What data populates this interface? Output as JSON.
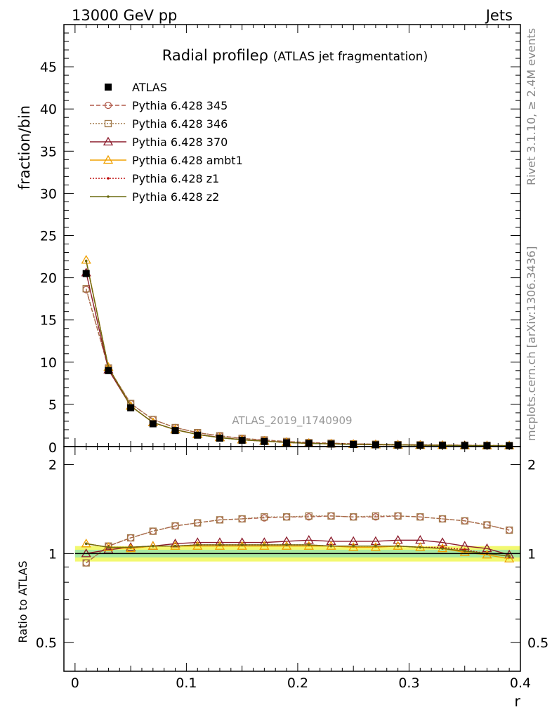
{
  "header": {
    "left": "13000 GeV pp",
    "right": "Jets"
  },
  "side": {
    "upper": "Rivet 3.1.10, ≥ 2.4M events",
    "lower": "mcplots.cern.ch [arXiv:1306.3436]"
  },
  "chart_data": {
    "type": "line",
    "title": "Radial profile ρ (ATLAS jet fragmentation)",
    "title_main": "Radial profile",
    "title_rho": "ρ",
    "title_paren": "(ATLAS jet fragmentation)",
    "watermark": "ATLAS_2019_I1740909",
    "xlabel": "r",
    "ylabel_main": "fraction/bin",
    "ylabel_ratio": "Ratio to ATLAS",
    "xlim": [
      -0.01,
      0.4
    ],
    "ylim_main": [
      0,
      50
    ],
    "ylim_ratio": [
      0.4,
      2.3
    ],
    "xticks": [
      "0",
      "0.1",
      "0.2",
      "0.3",
      "0.4"
    ],
    "yticks_main": [
      "5",
      "10",
      "15",
      "20",
      "25",
      "30",
      "35",
      "40",
      "45"
    ],
    "yticks_ratio": [
      "0.5",
      "1",
      "2"
    ],
    "x": [
      0.01,
      0.03,
      0.05,
      0.07,
      0.09,
      0.11,
      0.13,
      0.15,
      0.17,
      0.19,
      0.21,
      0.23,
      0.25,
      0.27,
      0.29,
      0.31,
      0.33,
      0.35,
      0.37,
      0.39
    ],
    "series": [
      {
        "name": "ATLAS",
        "color": "#000000",
        "style": "data",
        "values": [
          20.5,
          9.0,
          4.6,
          2.7,
          1.9,
          1.35,
          1.0,
          0.75,
          0.6,
          0.45,
          0.36,
          0.3,
          0.25,
          0.21,
          0.18,
          0.16,
          0.14,
          0.12,
          0.11,
          0.1
        ],
        "ratio": [
          1,
          1,
          1,
          1,
          1,
          1,
          1,
          1,
          1,
          1,
          1,
          1,
          1,
          1,
          1,
          1,
          1,
          1,
          1,
          1
        ]
      },
      {
        "name": "Pythia 6.428 345",
        "color": "#b05a4a",
        "dash": "6,3",
        "marker": "circle",
        "values": [
          18.6,
          9.3,
          5.1,
          3.2,
          2.25,
          1.65,
          1.27,
          0.96,
          0.78,
          0.6,
          0.48,
          0.4,
          0.33,
          0.28,
          0.24,
          0.21,
          0.18,
          0.16,
          0.14,
          0.12
        ],
        "ratio": [
          0.93,
          1.06,
          1.13,
          1.19,
          1.24,
          1.27,
          1.3,
          1.31,
          1.32,
          1.33,
          1.33,
          1.34,
          1.33,
          1.33,
          1.34,
          1.33,
          1.31,
          1.29,
          1.25,
          1.2
        ]
      },
      {
        "name": "Pythia 6.428 346",
        "color": "#a07848",
        "dash": "2,2",
        "marker": "square",
        "values": [
          18.7,
          9.3,
          5.1,
          3.2,
          2.25,
          1.65,
          1.28,
          0.97,
          0.79,
          0.6,
          0.48,
          0.4,
          0.33,
          0.28,
          0.24,
          0.21,
          0.18,
          0.16,
          0.14,
          0.12
        ],
        "ratio": [
          0.93,
          1.06,
          1.13,
          1.19,
          1.24,
          1.27,
          1.3,
          1.31,
          1.33,
          1.33,
          1.34,
          1.34,
          1.33,
          1.34,
          1.34,
          1.33,
          1.31,
          1.29,
          1.25,
          1.2
        ]
      },
      {
        "name": "Pythia 6.428 370",
        "color": "#8c1c2c",
        "dash": "",
        "marker": "triangle",
        "values": [
          20.6,
          9.1,
          4.8,
          2.85,
          2.0,
          1.45,
          1.09,
          0.82,
          0.66,
          0.49,
          0.39,
          0.33,
          0.27,
          0.23,
          0.2,
          0.17,
          0.15,
          0.13,
          0.11,
          0.1
        ],
        "ratio": [
          1.0,
          1.03,
          1.05,
          1.06,
          1.08,
          1.09,
          1.09,
          1.09,
          1.09,
          1.1,
          1.11,
          1.1,
          1.1,
          1.1,
          1.11,
          1.11,
          1.09,
          1.06,
          1.04,
          0.99
        ]
      },
      {
        "name": "Pythia 6.428 ambt1",
        "color": "#f0a000",
        "dash": "",
        "marker": "triangle",
        "values": [
          22.1,
          9.4,
          4.8,
          2.85,
          2.0,
          1.43,
          1.06,
          0.8,
          0.64,
          0.48,
          0.38,
          0.32,
          0.26,
          0.22,
          0.19,
          0.16,
          0.14,
          0.12,
          0.11,
          0.1
        ],
        "ratio": [
          1.08,
          1.05,
          1.04,
          1.06,
          1.06,
          1.06,
          1.06,
          1.06,
          1.06,
          1.06,
          1.06,
          1.06,
          1.05,
          1.05,
          1.06,
          1.05,
          1.04,
          1.01,
          0.99,
          0.96
        ]
      },
      {
        "name": "Pythia 6.428 z1",
        "color": "#c01010",
        "dash": "2,2",
        "marker": "dot",
        "values": [
          22.0,
          9.4,
          4.8,
          2.85,
          2.0,
          1.43,
          1.06,
          0.8,
          0.64,
          0.48,
          0.38,
          0.32,
          0.26,
          0.22,
          0.19,
          0.16,
          0.14,
          0.12,
          0.11,
          0.1
        ],
        "ratio": [
          1.08,
          1.05,
          1.05,
          1.06,
          1.06,
          1.07,
          1.07,
          1.07,
          1.07,
          1.07,
          1.07,
          1.06,
          1.06,
          1.06,
          1.06,
          1.05,
          1.05,
          1.03,
          1.0,
          0.98
        ]
      },
      {
        "name": "Pythia 6.428 z2",
        "color": "#6b6b10",
        "dash": "",
        "marker": "dot",
        "values": [
          22.0,
          9.4,
          4.8,
          2.85,
          2.0,
          1.43,
          1.06,
          0.8,
          0.64,
          0.48,
          0.38,
          0.32,
          0.26,
          0.22,
          0.19,
          0.16,
          0.14,
          0.12,
          0.11,
          0.1
        ],
        "ratio": [
          1.08,
          1.05,
          1.05,
          1.06,
          1.06,
          1.07,
          1.07,
          1.07,
          1.07,
          1.07,
          1.07,
          1.06,
          1.06,
          1.06,
          1.06,
          1.05,
          1.04,
          1.02,
          1.0,
          0.98
        ]
      }
    ],
    "band": {
      "inner": [
        0.97,
        1.03
      ],
      "outer": [
        0.94,
        1.06
      ]
    }
  }
}
